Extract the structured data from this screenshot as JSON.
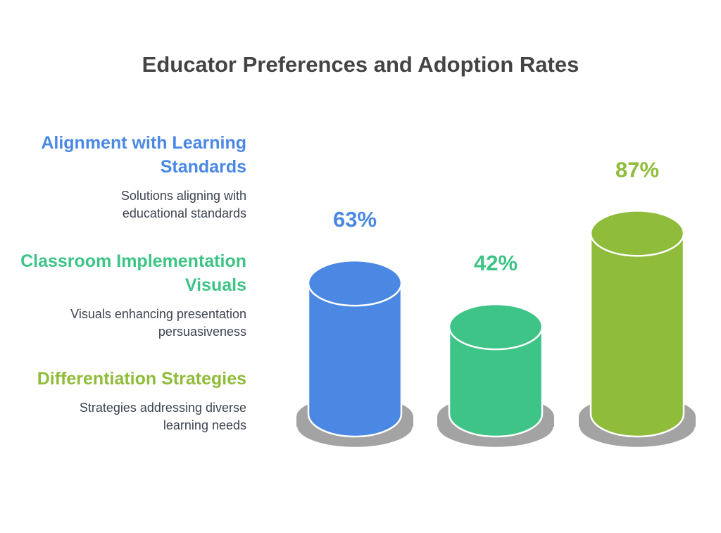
{
  "chart_data": {
    "type": "bar",
    "style": "3d-cylinder",
    "title": "Educator Preferences and Adoption Rates",
    "categories": [
      "Alignment with Learning Standards",
      "Classroom Implementation Visuals",
      "Differentiation Strategies"
    ],
    "values": [
      63,
      42,
      87
    ],
    "labels": [
      "63%",
      "42%",
      "87%"
    ],
    "colors": [
      "#4a88e4",
      "#3dc486",
      "#8fbc3a"
    ],
    "descriptions": [
      [
        "Solutions aligning with",
        "educational standards"
      ],
      [
        "Visuals enhancing presentation",
        "persuasiveness"
      ],
      [
        "Strategies addressing diverse",
        "learning needs"
      ]
    ],
    "ylim": [
      0,
      100
    ]
  }
}
